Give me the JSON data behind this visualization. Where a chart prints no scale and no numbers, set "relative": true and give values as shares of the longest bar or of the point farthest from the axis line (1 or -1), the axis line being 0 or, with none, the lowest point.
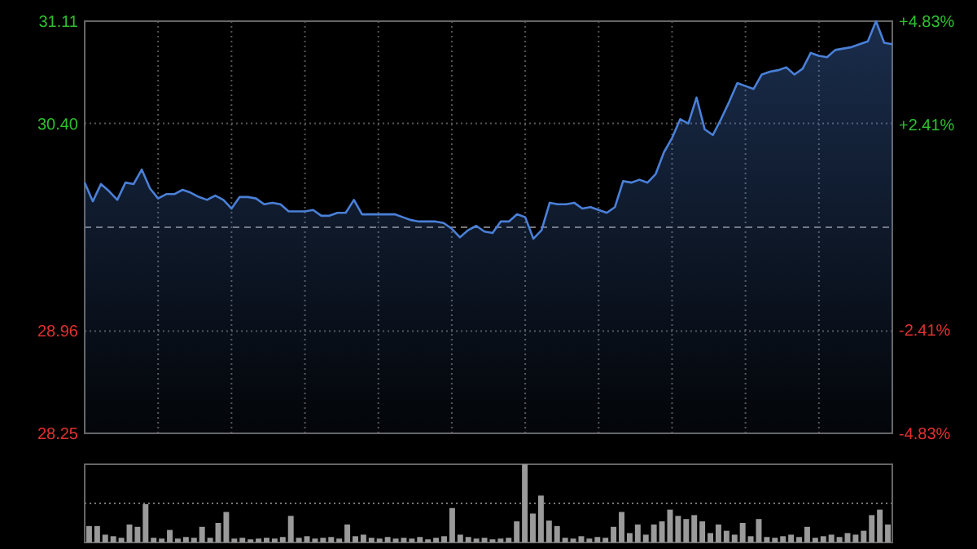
{
  "chart_data": [
    {
      "type": "area",
      "categories": [
        null,
        null,
        null,
        null,
        null,
        null,
        null,
        null,
        null,
        null,
        null,
        null,
        null,
        null,
        null,
        null,
        null,
        null,
        null,
        null,
        null,
        null,
        null,
        null,
        null,
        null,
        null,
        null,
        null,
        null,
        null,
        null,
        null,
        null,
        null,
        null,
        null,
        null,
        null,
        null,
        null,
        null,
        null,
        null,
        null,
        null,
        null,
        null,
        null,
        null,
        null,
        null,
        null,
        null,
        null,
        null,
        null,
        null,
        null,
        null,
        null,
        null,
        null,
        null,
        null,
        null,
        null,
        null,
        null,
        null,
        null,
        null,
        null,
        null,
        null,
        null,
        null,
        null,
        null,
        null,
        null,
        null,
        null,
        null,
        null,
        null,
        null,
        null,
        null,
        null,
        null,
        null,
        null,
        null,
        null,
        null,
        null,
        null,
        null,
        null
      ],
      "series": [
        {
          "color": "#4a80d8",
          "values": [
            29.99,
            29.86,
            29.98,
            29.93,
            29.87,
            29.99,
            29.98,
            30.08,
            29.95,
            29.88,
            29.91,
            29.91,
            29.94,
            29.92,
            29.89,
            29.87,
            29.9,
            29.87,
            29.81,
            29.89,
            29.89,
            29.88,
            29.84,
            29.85,
            29.84,
            29.79,
            29.79,
            29.79,
            29.8,
            29.76,
            29.76,
            29.78,
            29.78,
            29.87,
            29.77,
            29.77,
            29.77,
            29.77,
            29.77,
            29.75,
            29.73,
            29.72,
            29.72,
            29.72,
            29.71,
            29.67,
            29.61,
            29.66,
            29.69,
            29.65,
            29.64,
            29.72,
            29.72,
            29.77,
            29.75,
            29.6,
            29.66,
            29.85,
            29.84,
            29.84,
            29.85,
            29.81,
            29.82,
            29.8,
            29.78,
            29.82,
            30.0,
            29.99,
            30.01,
            29.99,
            30.05,
            30.2,
            30.3,
            30.43,
            30.4,
            30.58,
            30.36,
            30.32,
            30.43,
            30.55,
            30.68,
            30.66,
            30.64,
            30.74,
            30.76,
            30.77,
            30.79,
            30.74,
            30.78,
            30.89,
            30.87,
            30.86,
            30.91,
            30.92,
            30.93,
            30.95,
            30.97,
            31.11,
            30.96,
            30.95
          ]
        }
      ],
      "ylim": [
        28.25,
        31.11
      ],
      "yticks": [
        28.25,
        28.96,
        {
          "value": 30.4,
          "label": "30.40"
        },
        31.11
      ],
      "y2lim": [
        -4.83,
        4.83
      ],
      "y2ticks": [
        {
          "value": -4.83,
          "label": "-4.83%"
        },
        {
          "value": -2.41,
          "label": "-2.41%"
        },
        {
          "value": 2.41,
          "label": "+2.41%"
        },
        {
          "value": 4.83,
          "label": "+4.83%"
        }
      ],
      "ref_lines": [
        {
          "axis": "y",
          "value": 29.68,
          "line_style": "dashed"
        }
      ],
      "grid": true,
      "tick_labels": "y"
    },
    {
      "type": "bar",
      "relative": true,
      "color": "#9a9a9a",
      "tick_labels": false,
      "ref_lines": [
        {
          "axis": "y",
          "value": 0.5,
          "line_style": "dotted"
        }
      ],
      "categories": [
        null,
        null,
        null,
        null,
        null,
        null,
        null,
        null,
        null,
        null,
        null,
        null,
        null,
        null,
        null,
        null,
        null,
        null,
        null,
        null,
        null,
        null,
        null,
        null,
        null,
        null,
        null,
        null,
        null,
        null,
        null,
        null,
        null,
        null,
        null,
        null,
        null,
        null,
        null,
        null,
        null,
        null,
        null,
        null,
        null,
        null,
        null,
        null,
        null,
        null,
        null,
        null,
        null,
        null,
        null,
        null,
        null,
        null,
        null,
        null,
        null,
        null,
        null,
        null,
        null,
        null,
        null,
        null,
        null,
        null,
        null,
        null,
        null,
        null,
        null,
        null,
        null,
        null,
        null,
        null,
        null,
        null,
        null,
        null,
        null,
        null,
        null,
        null,
        null,
        null,
        null,
        null,
        null,
        null,
        null,
        null,
        null,
        null,
        null,
        null
      ],
      "values": [
        0.21,
        0.21,
        0.1,
        0.08,
        0.06,
        0.23,
        0.2,
        0.49,
        0.06,
        0.05,
        0.16,
        0.05,
        0.07,
        0.06,
        0.2,
        0.06,
        0.25,
        0.39,
        0.05,
        0.06,
        0.04,
        0.05,
        0.06,
        0.05,
        0.07,
        0.34,
        0.06,
        0.08,
        0.05,
        0.06,
        0.07,
        0.05,
        0.23,
        0.08,
        0.1,
        0.06,
        0.05,
        0.07,
        0.05,
        0.06,
        0.05,
        0.07,
        0.04,
        0.06,
        0.08,
        0.44,
        0.1,
        0.07,
        0.05,
        0.06,
        0.04,
        0.05,
        0.06,
        0.27,
        1,
        0.37,
        0.6,
        0.28,
        0.21,
        0.06,
        0.05,
        0.08,
        0.05,
        0.07,
        0.06,
        0.2,
        0.39,
        0.12,
        0.23,
        0.1,
        0.23,
        0.27,
        0.42,
        0.34,
        0.3,
        0.35,
        0.27,
        0.12,
        0.23,
        0.15,
        0.1,
        0.25,
        0.08,
        0.3,
        0.07,
        0.06,
        0.08,
        0.1,
        0.07,
        0.2,
        0.06,
        0.08,
        0.1,
        0.07,
        0.12,
        0.1,
        0.15,
        0.35,
        0.42,
        0.23
      ]
    }
  ]
}
